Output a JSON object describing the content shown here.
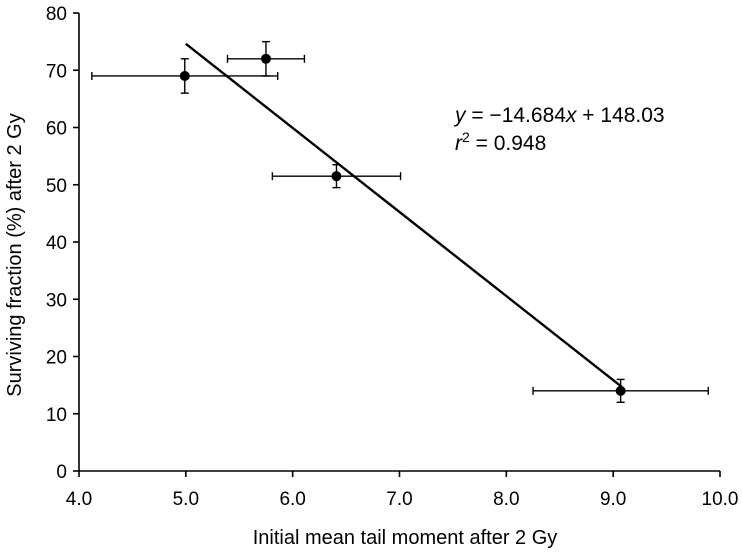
{
  "chart_data": {
    "type": "scatter",
    "title": "",
    "xlabel": "Initial mean tail moment after 2 Gy",
    "ylabel": "Surviving fraction (%) after 2 Gy",
    "xlim": [
      4.0,
      10.0
    ],
    "ylim": [
      0,
      80
    ],
    "xticks": [
      4.0,
      5.0,
      6.0,
      7.0,
      8.0,
      9.0,
      10.0
    ],
    "xtick_labels": [
      "4.0",
      "5.0",
      "6.0",
      "7.0",
      "8.0",
      "9.0",
      "10.0"
    ],
    "yticks": [
      0,
      10,
      20,
      30,
      40,
      50,
      60,
      70,
      80
    ],
    "ytick_labels": [
      "0",
      "10",
      "20",
      "30",
      "40",
      "50",
      "60",
      "70",
      "80"
    ],
    "grid": false,
    "series": [
      {
        "name": "data",
        "points": [
          {
            "x": 4.99,
            "y": 69.0,
            "x_err": [
              0.87,
              0.87
            ],
            "y_err": [
              3.0,
              3.0
            ]
          },
          {
            "x": 5.75,
            "y": 72.0,
            "x_err": [
              0.36,
              0.36
            ],
            "y_err": [
              3.0,
              3.0
            ]
          },
          {
            "x": 6.41,
            "y": 51.5,
            "x_err": [
              0.6,
              0.6
            ],
            "y_err": [
              2.0,
              2.0
            ]
          },
          {
            "x": 9.07,
            "y": 14.0,
            "x_err": [
              0.82,
              0.82
            ],
            "y_err": [
              2.0,
              2.0
            ]
          }
        ]
      }
    ],
    "fit_line": {
      "slope": -14.684,
      "intercept": 148.03,
      "x_range": [
        5.0,
        9.08
      ]
    },
    "annotation": {
      "equation_var": "y",
      "equation_rest": " = −14.684",
      "equation_var2": "x",
      "equation_tail": " + 148.03",
      "r_var": "r",
      "r_sup": "2",
      "r_rest": " = 0.948"
    }
  }
}
